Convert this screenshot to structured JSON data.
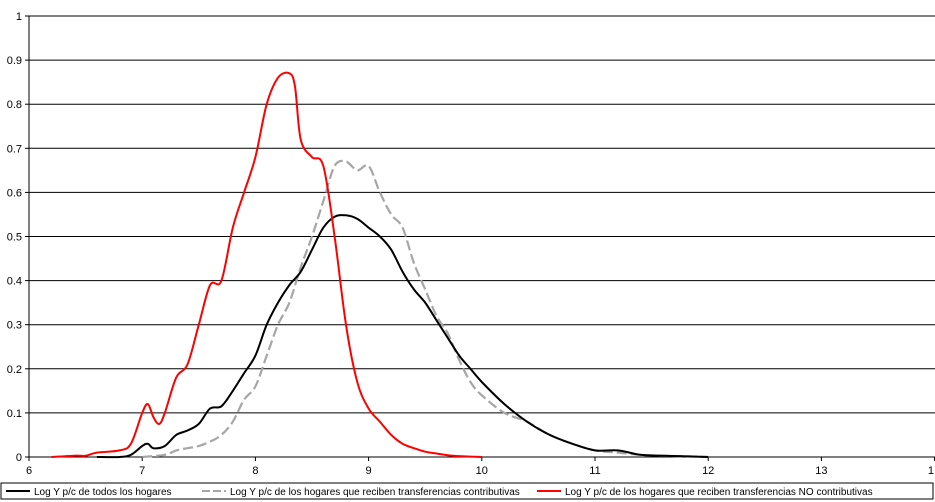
{
  "chart_data": {
    "type": "line",
    "title": "",
    "xlabel": "",
    "ylabel": "",
    "xlim": [
      6,
      14
    ],
    "ylim": [
      0,
      1
    ],
    "x_ticks": [
      "6",
      "7",
      "8",
      "9",
      "10",
      "11",
      "12",
      "13",
      "1"
    ],
    "y_ticks": [
      "0",
      "0.1",
      "0.2",
      "0.3",
      "0.4",
      "0.5",
      "0.6",
      "0.7",
      "0.8",
      "0.9",
      "1"
    ],
    "grid": "horizontal",
    "legend_position": "bottom",
    "series": [
      {
        "name": "Log Y p/c de todos los hogares",
        "color": "#000000",
        "dash": "solid",
        "x": [
          6.6,
          6.8,
          6.9,
          7.0,
          7.05,
          7.1,
          7.2,
          7.3,
          7.4,
          7.5,
          7.6,
          7.7,
          7.8,
          7.9,
          8.0,
          8.1,
          8.2,
          8.3,
          8.4,
          8.5,
          8.6,
          8.7,
          8.8,
          8.9,
          9.0,
          9.1,
          9.2,
          9.3,
          9.4,
          9.5,
          9.6,
          9.7,
          9.8,
          9.9,
          10.0,
          10.2,
          10.4,
          10.6,
          10.8,
          11.0,
          11.2,
          11.4,
          11.6,
          12.0
        ],
        "y": [
          0,
          0,
          0.005,
          0.025,
          0.03,
          0.02,
          0.025,
          0.05,
          0.06,
          0.075,
          0.11,
          0.115,
          0.15,
          0.19,
          0.23,
          0.3,
          0.35,
          0.39,
          0.42,
          0.47,
          0.52,
          0.545,
          0.548,
          0.54,
          0.52,
          0.5,
          0.47,
          0.42,
          0.38,
          0.35,
          0.31,
          0.27,
          0.23,
          0.2,
          0.17,
          0.12,
          0.08,
          0.05,
          0.03,
          0.015,
          0.015,
          0.005,
          0.003,
          0
        ]
      },
      {
        "name": "Log Y p/c de los hogares que reciben transferencias contributivas",
        "color": "#a6a6a6",
        "dash": "dashed",
        "x": [
          7.0,
          7.2,
          7.3,
          7.4,
          7.5,
          7.6,
          7.7,
          7.8,
          7.9,
          8.0,
          8.1,
          8.2,
          8.3,
          8.4,
          8.5,
          8.6,
          8.7,
          8.8,
          8.9,
          9.0,
          9.1,
          9.2,
          9.3,
          9.4,
          9.5,
          9.6,
          9.7,
          9.8,
          9.9,
          10.0,
          10.2,
          10.4,
          10.6,
          10.8,
          11.0,
          11.2,
          11.4,
          11.6,
          12.0
        ],
        "y": [
          0,
          0.005,
          0.015,
          0.02,
          0.025,
          0.035,
          0.05,
          0.08,
          0.13,
          0.16,
          0.23,
          0.3,
          0.35,
          0.43,
          0.5,
          0.58,
          0.66,
          0.67,
          0.65,
          0.66,
          0.6,
          0.55,
          0.52,
          0.44,
          0.38,
          0.32,
          0.28,
          0.22,
          0.17,
          0.14,
          0.1,
          0.08,
          0.05,
          0.03,
          0.015,
          0.01,
          0.005,
          0.003,
          0
        ]
      },
      {
        "name": "Log Y p/c de los hogares que reciben transferencias NO contributivas",
        "color": "#ff0000",
        "dash": "solid",
        "x": [
          6.2,
          6.4,
          6.5,
          6.6,
          6.8,
          6.9,
          7.0,
          7.05,
          7.1,
          7.15,
          7.2,
          7.3,
          7.4,
          7.5,
          7.6,
          7.7,
          7.8,
          7.9,
          8.0,
          8.1,
          8.2,
          8.3,
          8.35,
          8.4,
          8.5,
          8.6,
          8.7,
          8.8,
          8.9,
          9.0,
          9.1,
          9.2,
          9.3,
          9.4,
          9.5,
          9.6,
          9.7,
          9.8,
          10.0
        ],
        "y": [
          0,
          0.003,
          0.003,
          0.01,
          0.015,
          0.03,
          0.1,
          0.12,
          0.09,
          0.075,
          0.1,
          0.18,
          0.21,
          0.3,
          0.39,
          0.4,
          0.52,
          0.6,
          0.68,
          0.8,
          0.86,
          0.87,
          0.84,
          0.72,
          0.68,
          0.66,
          0.5,
          0.3,
          0.17,
          0.11,
          0.08,
          0.05,
          0.03,
          0.02,
          0.012,
          0.008,
          0.004,
          0.002,
          0
        ]
      }
    ]
  }
}
